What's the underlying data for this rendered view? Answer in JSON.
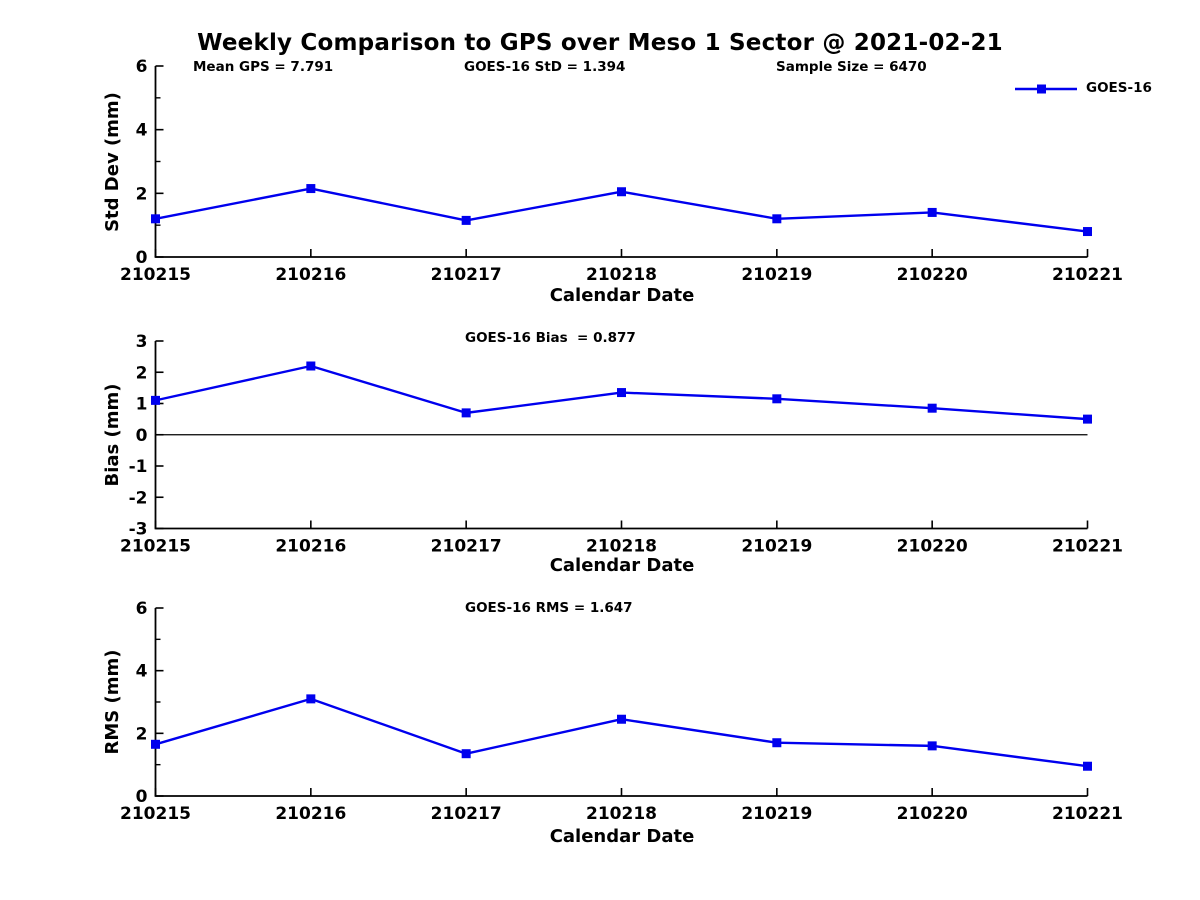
{
  "figure": {
    "title": "Weekly Comparison to GPS over Meso 1 Sector @ 2021-02-21",
    "annotations": {
      "mean_gps": "Mean GPS = 7.791",
      "goes16_std": "GOES-16 StD = 1.394",
      "sample_size": "Sample Size = 6470"
    },
    "legend": {
      "label": "GOES-16",
      "position": "top-right"
    },
    "colors": {
      "line": "#0000EE",
      "axis": "#000000",
      "text": "#000000",
      "background": "#FFFFFF"
    }
  },
  "chart_data": [
    {
      "type": "line",
      "title": "",
      "ylabel": "Std Dev (mm)",
      "xlabel": "Calendar Date",
      "categories": [
        "210215",
        "210216",
        "210217",
        "210218",
        "210219",
        "210220",
        "210221"
      ],
      "series": [
        {
          "name": "GOES-16",
          "marker": "square",
          "values": [
            1.2,
            2.15,
            1.15,
            2.05,
            1.2,
            1.4,
            0.8
          ]
        }
      ],
      "ylim": [
        0,
        6
      ],
      "yticks": [
        0,
        2,
        4,
        6
      ],
      "yticks_minor": [
        1,
        3,
        5
      ],
      "grid": false,
      "zero_line": false
    },
    {
      "type": "line",
      "title": "GOES-16 Bias  = 0.877",
      "ylabel": "Bias (mm)",
      "xlabel": "Calendar Date",
      "categories": [
        "210215",
        "210216",
        "210217",
        "210218",
        "210219",
        "210220",
        "210221"
      ],
      "series": [
        {
          "name": "GOES-16",
          "marker": "square",
          "values": [
            1.1,
            2.2,
            0.7,
            1.35,
            1.15,
            0.85,
            0.5
          ]
        }
      ],
      "ylim": [
        -3,
        3
      ],
      "yticks": [
        -3,
        -2,
        -1,
        0,
        1,
        2,
        3
      ],
      "yticks_minor": [],
      "grid": false,
      "zero_line": true
    },
    {
      "type": "line",
      "title": "GOES-16 RMS = 1.647",
      "ylabel": "RMS (mm)",
      "xlabel": "Calendar Date",
      "categories": [
        "210215",
        "210216",
        "210217",
        "210218",
        "210219",
        "210220",
        "210221"
      ],
      "series": [
        {
          "name": "GOES-16",
          "marker": "square",
          "values": [
            1.65,
            3.1,
            1.35,
            2.45,
            1.7,
            1.6,
            0.95
          ]
        }
      ],
      "ylim": [
        0,
        6
      ],
      "yticks": [
        0,
        2,
        4,
        6
      ],
      "yticks_minor": [
        1,
        3,
        5
      ],
      "grid": false,
      "zero_line": false
    }
  ]
}
